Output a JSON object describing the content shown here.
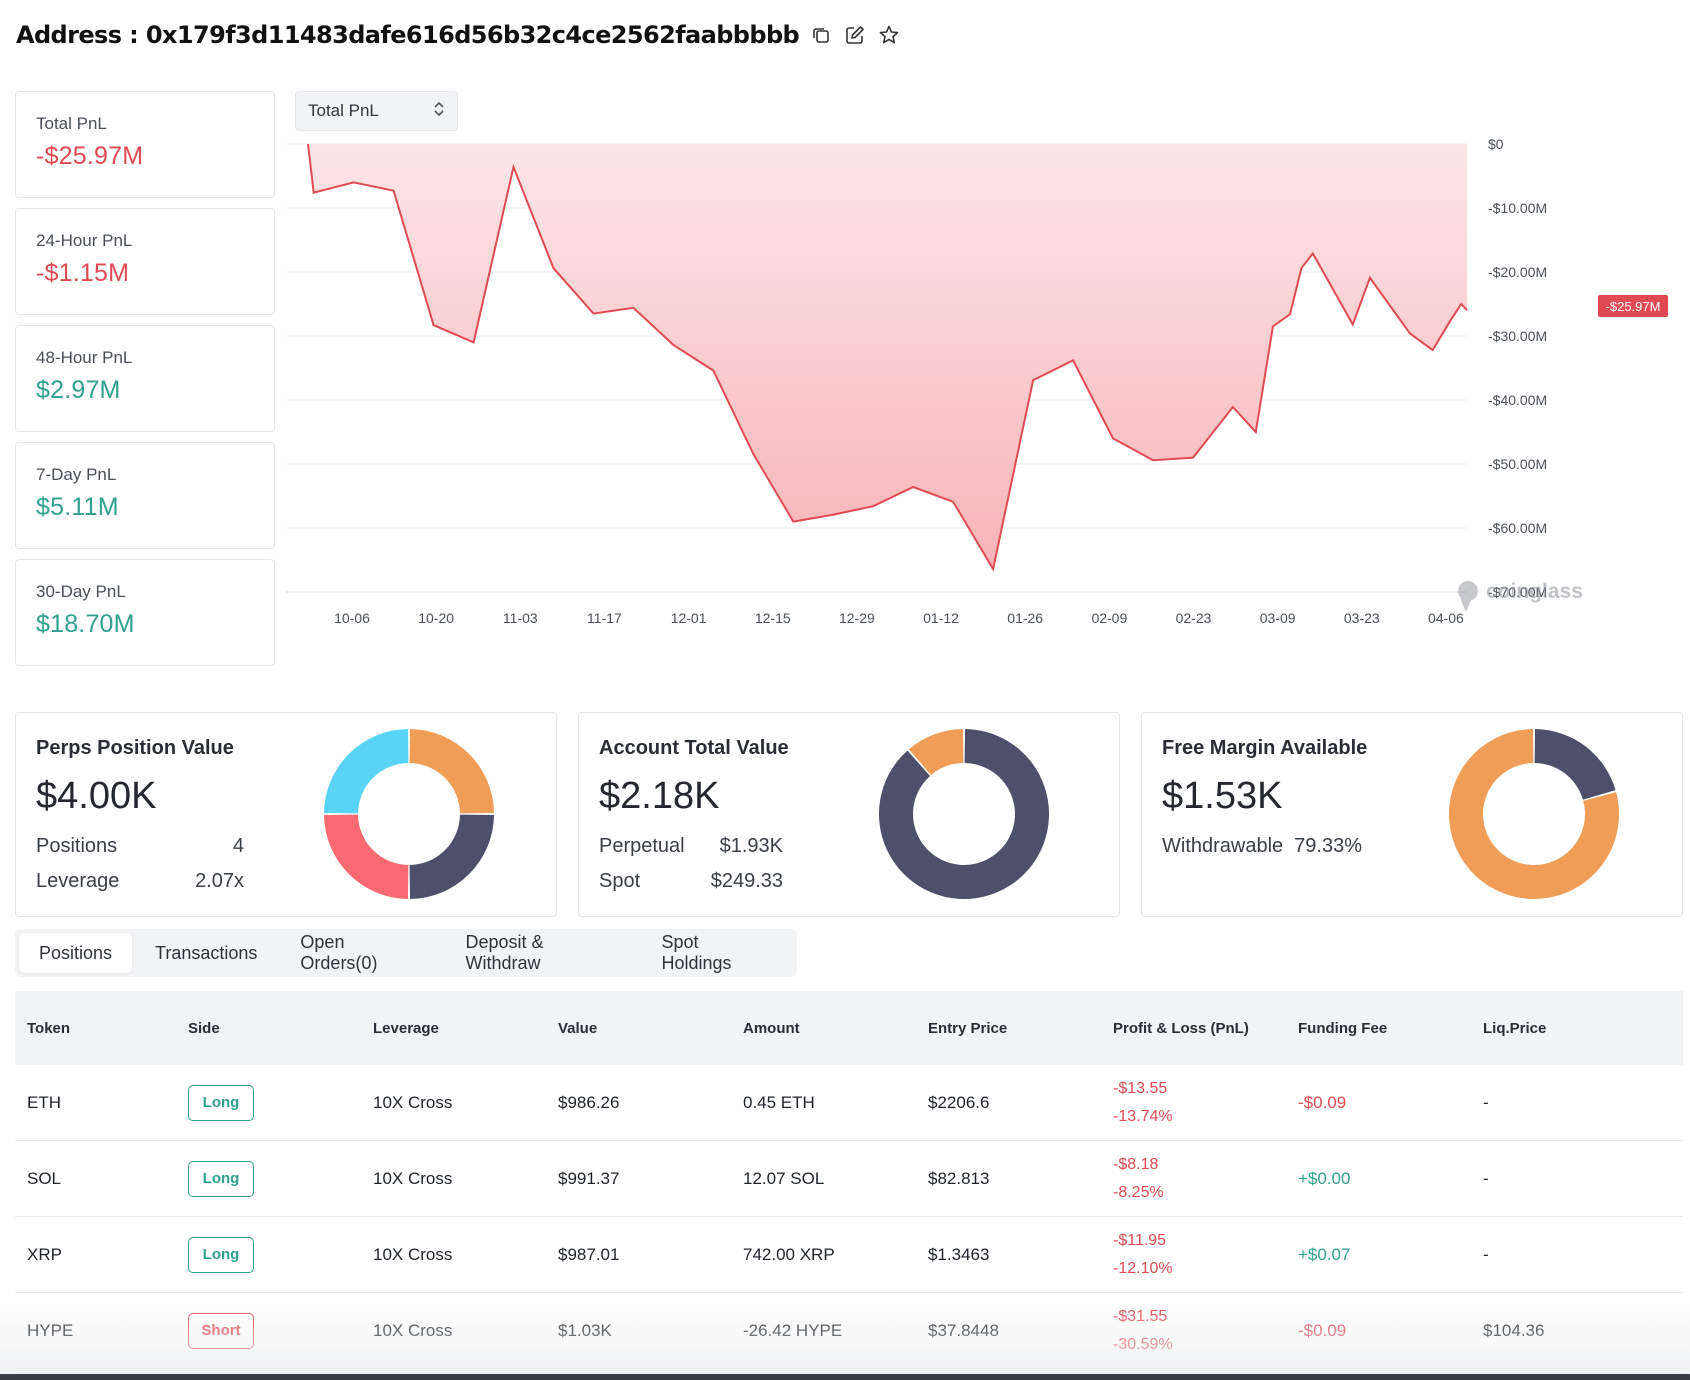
{
  "header": {
    "address_label": "Address : 0x179f3d11483dafe616d56b32c4ce2562faabbbbb",
    "icons": [
      "copy-icon",
      "edit-icon",
      "star-icon"
    ]
  },
  "pnl_stats": [
    {
      "label": "Total PnL",
      "value": "-$25.97M",
      "sign": "neg"
    },
    {
      "label": "24-Hour PnL",
      "value": "-$1.15M",
      "sign": "neg"
    },
    {
      "label": "48-Hour PnL",
      "value": "$2.97M",
      "sign": "pos"
    },
    {
      "label": "7-Day PnL",
      "value": "$5.11M",
      "sign": "pos"
    },
    {
      "label": "30-Day PnL",
      "value": "$18.70M",
      "sign": "pos"
    }
  ],
  "chart_select": {
    "value": "Total PnL"
  },
  "chart_data": {
    "type": "area",
    "x_ticks": [
      "10-06",
      "10-20",
      "11-03",
      "11-17",
      "12-01",
      "12-15",
      "12-29",
      "01-12",
      "01-26",
      "02-09",
      "02-23",
      "03-09",
      "03-23",
      "04-06"
    ],
    "y_ticks": [
      "$0",
      "-$10.00M",
      "-$20.00M",
      "-$30.00M",
      "-$40.00M",
      "-$50.00M",
      "-$60.00M",
      "-$70.00M"
    ],
    "ylim": [
      -70,
      0
    ],
    "y_unit": "M",
    "current_label": "-$25.97M",
    "watermark": "coinglass",
    "line_color": "#e04a53",
    "fill_color": "#f7b8bb",
    "series": [
      {
        "values": [
          [
            "09-29",
            0
          ],
          [
            "09-30",
            -7.6
          ],
          [
            "10-07",
            -6.0
          ],
          [
            "10-14",
            -7.3
          ],
          [
            "10-21",
            -28.3
          ],
          [
            "10-28",
            -31.0
          ],
          [
            "11-04",
            -3.6
          ],
          [
            "11-11",
            -19.4
          ],
          [
            "11-18",
            -26.5
          ],
          [
            "11-25",
            -25.6
          ],
          [
            "12-02",
            -31.4
          ],
          [
            "12-09",
            -35.4
          ],
          [
            "12-16",
            -48.4
          ],
          [
            "12-23",
            -59.0
          ],
          [
            "12-30",
            -57.9
          ],
          [
            "01-06",
            -56.6
          ],
          [
            "01-13",
            -53.6
          ],
          [
            "01-20",
            -55.9
          ],
          [
            "01-27",
            -66.4
          ],
          [
            "02-03",
            -36.9
          ],
          [
            "02-10",
            -33.8
          ],
          [
            "02-17",
            -46.0
          ],
          [
            "02-24",
            -49.4
          ],
          [
            "03-03",
            -49.0
          ],
          [
            "03-10",
            -41.1
          ],
          [
            "03-14",
            -45.0
          ],
          [
            "03-17",
            -28.5
          ],
          [
            "03-20",
            -26.6
          ],
          [
            "03-22",
            -19.4
          ],
          [
            "03-24",
            -17.1
          ],
          [
            "03-31",
            -28.2
          ],
          [
            "04-03",
            -20.9
          ],
          [
            "04-10",
            -29.6
          ],
          [
            "04-14",
            -32.2
          ],
          [
            "04-17",
            -27.7
          ],
          [
            "04-19",
            -25.0
          ],
          [
            "04-20",
            -25.97
          ]
        ]
      }
    ]
  },
  "summary": {
    "perps": {
      "title": "Perps Position Value",
      "value": "$4.00K",
      "rows": [
        {
          "label": "Positions",
          "value": "4"
        },
        {
          "label": "Leverage",
          "value": "2.07x"
        }
      ],
      "donut": [
        {
          "fraction": 0.25,
          "color": "#ef9d57"
        },
        {
          "fraction": 0.25,
          "color": "#4e4f6b"
        },
        {
          "fraction": 0.25,
          "color": "#fb6a72"
        },
        {
          "fraction": 0.25,
          "color": "#5ad4f6"
        }
      ]
    },
    "account": {
      "title": "Account Total Value",
      "value": "$2.18K",
      "rows": [
        {
          "label": "Perpetual",
          "value": "$1.93K"
        },
        {
          "label": "Spot",
          "value": "$249.33"
        }
      ],
      "donut": [
        {
          "fraction": 0.886,
          "color": "#4e4f6b"
        },
        {
          "fraction": 0.114,
          "color": "#ef9d57"
        }
      ]
    },
    "margin": {
      "title": "Free Margin Available",
      "value": "$1.53K",
      "rows": [
        {
          "label": "Withdrawable",
          "value": "79.33%"
        }
      ],
      "donut": [
        {
          "fraction": 0.2067,
          "color": "#4e4f6b"
        },
        {
          "fraction": 0.7933,
          "color": "#ef9d57"
        }
      ]
    }
  },
  "tabs": [
    "Positions",
    "Transactions",
    "Open Orders(0)",
    "Deposit & Withdraw",
    "Spot Holdings"
  ],
  "active_tab": "Positions",
  "table": {
    "columns": [
      "Token",
      "Side",
      "Leverage",
      "Value",
      "Amount",
      "Entry Price",
      "Profit & Loss (PnL)",
      "Funding Fee",
      "Liq.Price"
    ],
    "rows": [
      {
        "token": "ETH",
        "side": "Long",
        "side_type": "long",
        "leverage": "10X Cross",
        "value": "$986.26",
        "amount": "0.45 ETH",
        "entry": "$2206.6",
        "pnl": "-$13.55",
        "pnl_pct": "-13.74%",
        "funding": "-$0.09",
        "funding_sign": "neg",
        "liq": "-"
      },
      {
        "token": "SOL",
        "side": "Long",
        "side_type": "long",
        "leverage": "10X Cross",
        "value": "$991.37",
        "amount": "12.07 SOL",
        "entry": "$82.813",
        "pnl": "-$8.18",
        "pnl_pct": "-8.25%",
        "funding": "+$0.00",
        "funding_sign": "pos",
        "liq": "-"
      },
      {
        "token": "XRP",
        "side": "Long",
        "side_type": "long",
        "leverage": "10X Cross",
        "value": "$987.01",
        "amount": "742.00 XRP",
        "entry": "$1.3463",
        "pnl": "-$11.95",
        "pnl_pct": "-12.10%",
        "funding": "+$0.07",
        "funding_sign": "pos",
        "liq": "-"
      },
      {
        "token": "HYPE",
        "side": "Short",
        "side_type": "short",
        "leverage": "10X Cross",
        "value": "$1.03K",
        "amount": "-26.42 HYPE",
        "entry": "$37.8448",
        "pnl": "-$31.55",
        "pnl_pct": "-30.59%",
        "funding": "-$0.09",
        "funding_sign": "neg",
        "liq": "$104.36"
      }
    ]
  }
}
